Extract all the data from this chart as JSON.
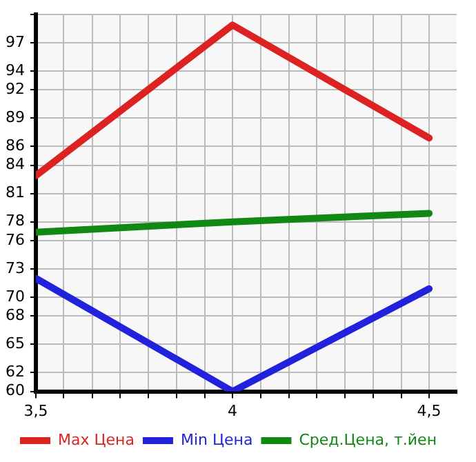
{
  "chart_data": {
    "type": "line",
    "x": [
      3.5,
      4,
      4.5
    ],
    "series": [
      {
        "name": "Max Цена",
        "color": "#dd2222",
        "values": [
          82.9,
          98.9,
          86.9
        ]
      },
      {
        "name": "Min Цена",
        "color": "#2222dd",
        "values": [
          72,
          60,
          70.9
        ]
      },
      {
        "name": "Сред.Цена, т.йен",
        "color": "#118811",
        "values": [
          76.9,
          78,
          78.9
        ]
      }
    ],
    "xlim": [
      3.5,
      4.57
    ],
    "xticks": [
      {
        "value": 3.5,
        "label": "3,5"
      },
      {
        "value": 3.571,
        "label": null
      },
      {
        "value": 3.643,
        "label": null
      },
      {
        "value": 3.714,
        "label": null
      },
      {
        "value": 3.786,
        "label": null
      },
      {
        "value": 3.857,
        "label": null
      },
      {
        "value": 3.929,
        "label": null
      },
      4,
      {
        "value": 4.071,
        "label": null
      },
      {
        "value": 4.143,
        "label": null
      },
      {
        "value": 4.214,
        "label": null
      },
      {
        "value": 4.286,
        "label": null
      },
      {
        "value": 4.357,
        "label": null
      },
      {
        "value": 4.429,
        "label": null
      },
      {
        "value": 4.5,
        "label": "4,5"
      }
    ],
    "ylim": [
      60,
      100
    ],
    "yticks": [
      60,
      62,
      65,
      68,
      70,
      73,
      76,
      78,
      81,
      84,
      86,
      89,
      92,
      94,
      97,
      {
        "value": 100,
        "label": null
      }
    ],
    "grid": true,
    "legend": "bottom",
    "marker": "none",
    "line_style": "solid"
  }
}
